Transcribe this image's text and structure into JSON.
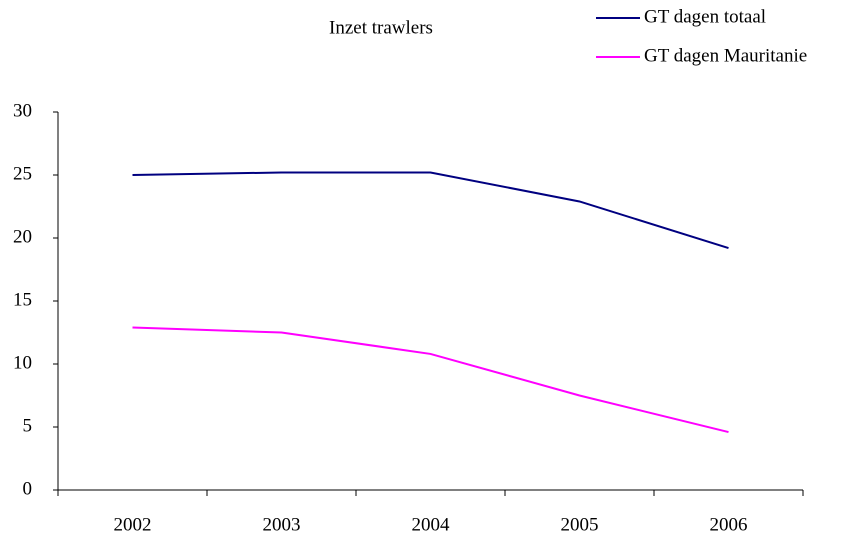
{
  "chart_data": {
    "type": "line",
    "title": "Inzet trawlers",
    "categories": [
      "2002",
      "2003",
      "2004",
      "2005",
      "2006"
    ],
    "series": [
      {
        "name": "GT dagen totaal",
        "color": "#000080",
        "values": [
          25.0,
          25.2,
          25.2,
          22.9,
          19.2
        ]
      },
      {
        "name": "GT dagen Mauritanie",
        "color": "#ff00ff",
        "values": [
          12.9,
          12.5,
          10.8,
          7.5,
          4.6
        ]
      }
    ],
    "ylim": [
      0,
      30
    ],
    "yticks": [
      0,
      5,
      10,
      15,
      20,
      25,
      30
    ],
    "grid": false,
    "legend": "top-right"
  }
}
